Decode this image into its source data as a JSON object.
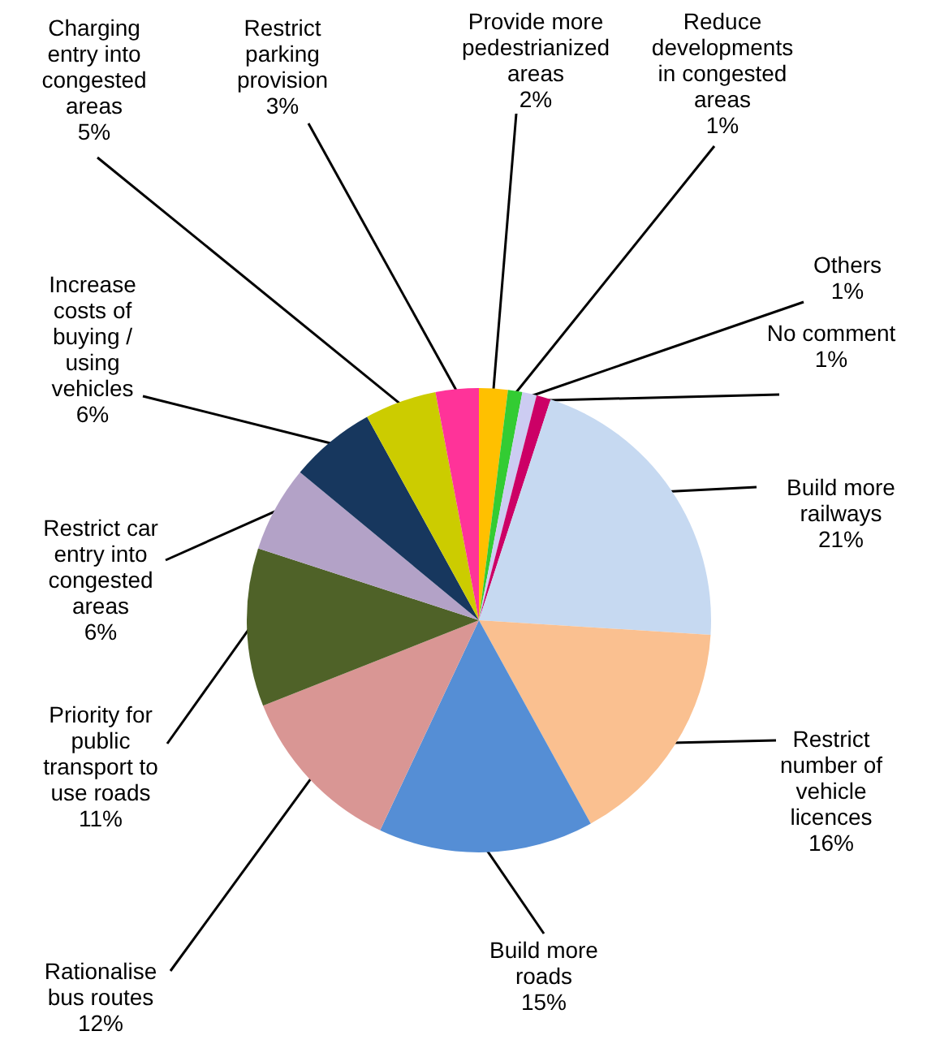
{
  "chart_data": {
    "type": "pie",
    "categories": [
      "Provide more pedestrianized areas",
      "Reduce developments in congested areas",
      "Others",
      "No comment",
      "Build more railways",
      "Restrict number of vehicle licences",
      "Build more roads",
      "Rationalise bus routes",
      "Priority for public transport to use roads",
      "Restrict car entry into congested areas",
      "Increase costs of buying / using vehicles",
      "Charging entry into congested areas",
      "Restrict parking provision"
    ],
    "values": [
      2,
      1,
      1,
      1,
      21,
      16,
      15,
      12,
      11,
      6,
      6,
      5,
      3
    ],
    "value_labels": [
      "2%",
      "1%",
      "1%",
      "1%",
      "21%",
      "16%",
      "15%",
      "12%",
      "11%",
      "6%",
      "6%",
      "5%",
      "3%"
    ],
    "colors": [
      "#ffc000",
      "#33cc33",
      "#ccccf2",
      "#cc0066",
      "#c6d9f1",
      "#fac090",
      "#558ed5",
      "#d99694",
      "#4f6228",
      "#b3a2c7",
      "#17375e",
      "#cccc00",
      "#ff3399"
    ]
  }
}
